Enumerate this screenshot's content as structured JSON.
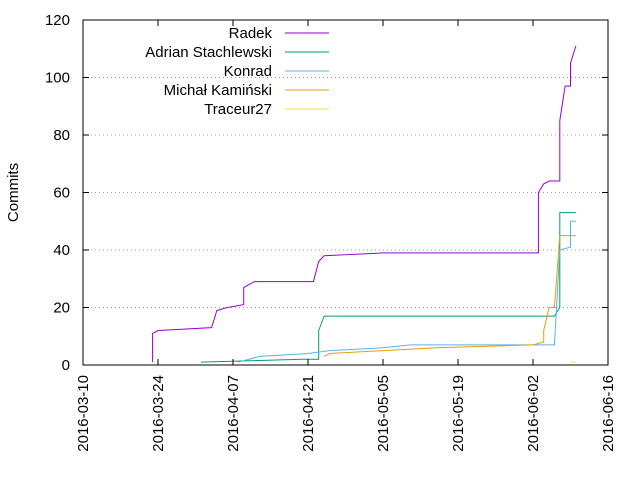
{
  "chart_data": {
    "type": "line",
    "title": "",
    "xlabel": "",
    "ylabel": "Commits",
    "xlim": [
      "2016-03-10",
      "2016-06-16"
    ],
    "ylim": [
      0,
      120
    ],
    "x_ticks": [
      "2016-03-10",
      "2016-03-24",
      "2016-04-07",
      "2016-04-21",
      "2016-05-05",
      "2016-05-19",
      "2016-06-02",
      "2016-06-16"
    ],
    "y_ticks": [
      0,
      20,
      40,
      60,
      80,
      100,
      120
    ],
    "grid": "horizontal dotted",
    "legend_position": "top-left",
    "series": [
      {
        "name": "Radek",
        "color": "#9400d3",
        "points": [
          [
            "2016-03-23",
            1
          ],
          [
            "2016-03-23",
            11
          ],
          [
            "2016-03-24",
            12
          ],
          [
            "2016-04-03",
            13
          ],
          [
            "2016-04-04",
            19
          ],
          [
            "2016-04-06",
            20
          ],
          [
            "2016-04-09",
            21
          ],
          [
            "2016-04-09",
            27
          ],
          [
            "2016-04-11",
            29
          ],
          [
            "2016-04-22",
            29
          ],
          [
            "2016-04-23",
            36
          ],
          [
            "2016-04-24",
            38
          ],
          [
            "2016-05-05",
            39
          ],
          [
            "2016-06-03",
            39
          ],
          [
            "2016-06-03",
            60
          ],
          [
            "2016-06-04",
            63
          ],
          [
            "2016-06-05",
            64
          ],
          [
            "2016-06-07",
            64
          ],
          [
            "2016-06-07",
            85
          ],
          [
            "2016-06-08",
            97
          ],
          [
            "2016-06-09",
            97
          ],
          [
            "2016-06-09",
            105
          ],
          [
            "2016-06-10",
            111
          ]
        ]
      },
      {
        "name": "Adrian Stachlewski",
        "color": "#009e73",
        "points": [
          [
            "2016-04-01",
            1
          ],
          [
            "2016-04-20",
            2
          ],
          [
            "2016-04-23",
            2
          ],
          [
            "2016-04-23",
            12
          ],
          [
            "2016-04-24",
            17
          ],
          [
            "2016-06-06",
            17
          ],
          [
            "2016-06-07",
            20
          ],
          [
            "2016-06-07",
            53
          ],
          [
            "2016-06-10",
            53
          ]
        ]
      },
      {
        "name": "Konrad",
        "color": "#56b4e9",
        "points": [
          [
            "2016-04-08",
            1
          ],
          [
            "2016-04-12",
            3
          ],
          [
            "2016-04-21",
            4
          ],
          [
            "2016-04-25",
            5
          ],
          [
            "2016-05-05",
            6
          ],
          [
            "2016-05-10",
            7
          ],
          [
            "2016-06-06",
            7
          ],
          [
            "2016-06-07",
            40
          ],
          [
            "2016-06-09",
            41
          ],
          [
            "2016-06-09",
            50
          ],
          [
            "2016-06-10",
            50
          ]
        ]
      },
      {
        "name": "Michał Kamiński",
        "color": "#e69f00",
        "points": [
          [
            "2016-04-24",
            3
          ],
          [
            "2016-04-25",
            4
          ],
          [
            "2016-05-05",
            5
          ],
          [
            "2016-05-15",
            6
          ],
          [
            "2016-06-02",
            7
          ],
          [
            "2016-06-04",
            8
          ],
          [
            "2016-06-04",
            12
          ],
          [
            "2016-06-05",
            20
          ],
          [
            "2016-06-06",
            20
          ],
          [
            "2016-06-07",
            45
          ],
          [
            "2016-06-10",
            45
          ]
        ]
      },
      {
        "name": "Traceur27",
        "color": "#f0e442",
        "points": [
          [
            "2016-06-09",
            1
          ],
          [
            "2016-06-10",
            1
          ]
        ]
      }
    ]
  }
}
